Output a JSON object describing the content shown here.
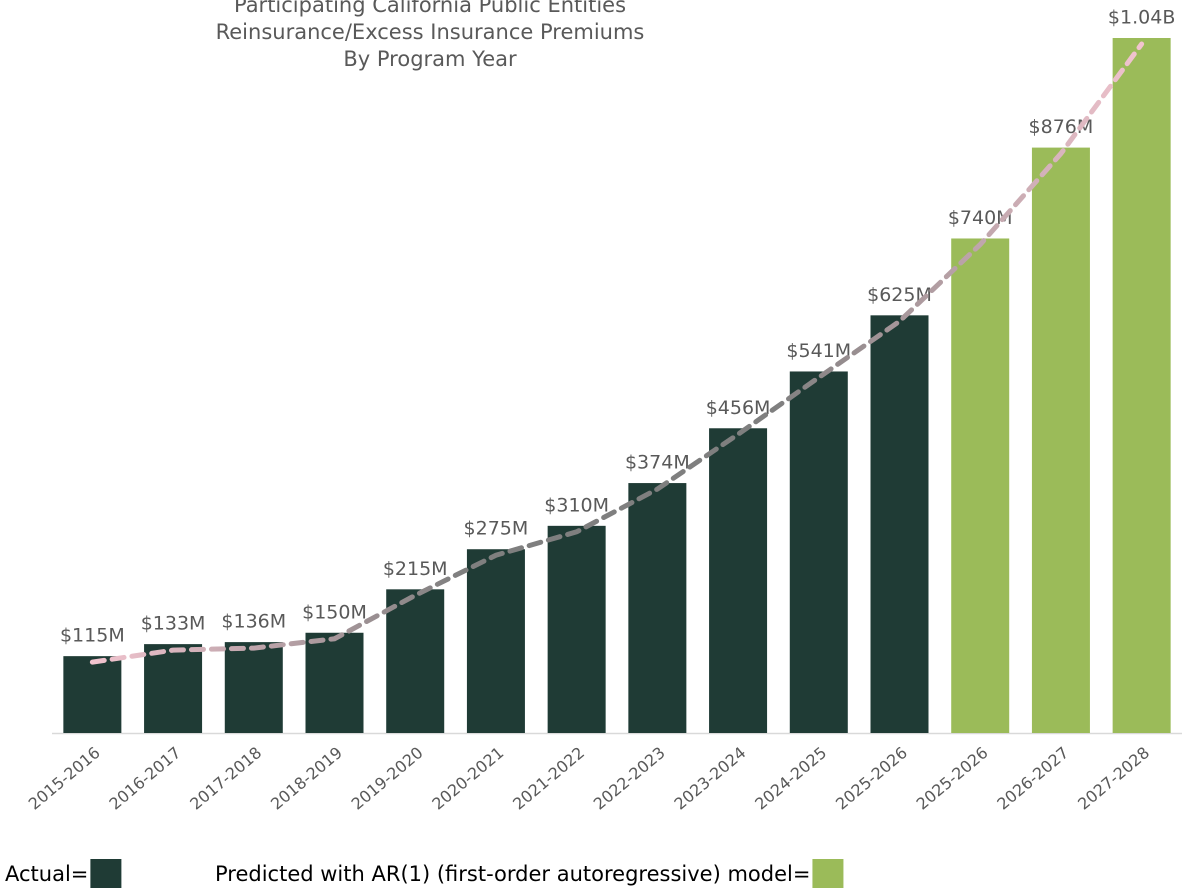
{
  "chart_data": {
    "type": "bar",
    "title": [
      "Participating California Public Entities",
      "Reinsurance/Excess Insurance Premiums",
      "By Program Year"
    ],
    "categories": [
      "2015-2016",
      "2016-2017",
      "2017-2018",
      "2018-2019",
      "2019-2020",
      "2020-2021",
      "2021-2022",
      "2022-2023",
      "2023-2024",
      "2024-2025",
      "2025-2026",
      "2025-2026",
      "2026-2027",
      "2027-2028"
    ],
    "series": [
      {
        "name": "Actual=",
        "color": "#1f3b35",
        "values": [
          115,
          133,
          136,
          150,
          215,
          275,
          310,
          374,
          456,
          541,
          625,
          null,
          null,
          null
        ],
        "value_labels": [
          "$115M",
          "$133M",
          "$136M",
          "$150M",
          "$215M",
          "$275M",
          "$310M",
          "$374M",
          "$456M",
          "$541M",
          "$625M",
          null,
          null,
          null
        ]
      },
      {
        "name": "Predicted with AR(1) (first-order autoregressive) model=",
        "color": "#9bbb59",
        "values": [
          null,
          null,
          null,
          null,
          null,
          null,
          null,
          null,
          null,
          null,
          null,
          740,
          876,
          1040
        ],
        "value_labels": [
          null,
          null,
          null,
          null,
          null,
          null,
          null,
          null,
          null,
          null,
          null,
          "$740M",
          "$876M",
          "$1.04B"
        ]
      }
    ],
    "trend_line": true
  }
}
